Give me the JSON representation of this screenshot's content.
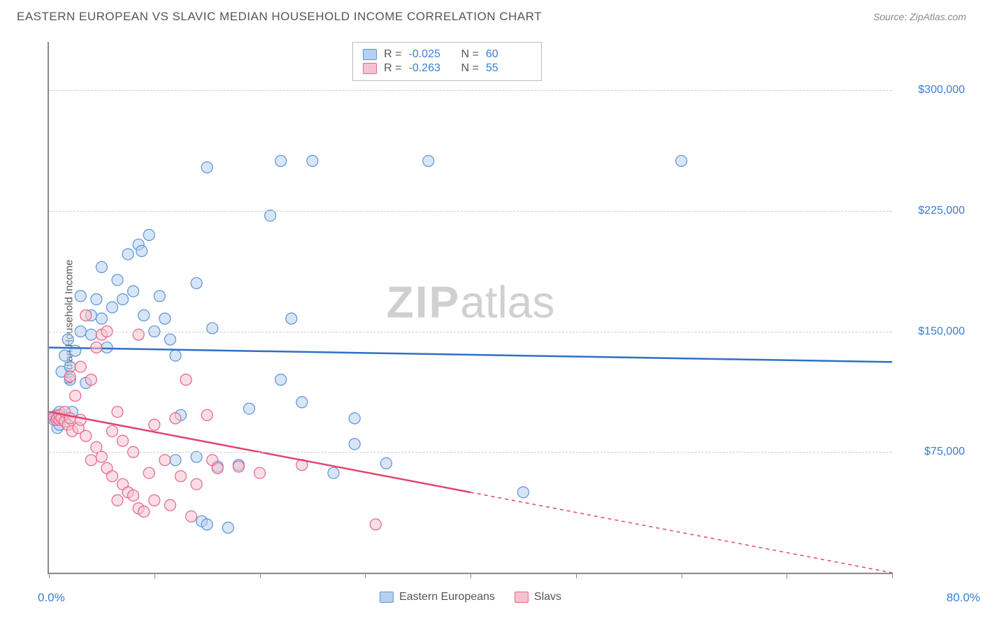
{
  "header": {
    "title": "EASTERN EUROPEAN VS SLAVIC MEDIAN HOUSEHOLD INCOME CORRELATION CHART",
    "source": "Source: ZipAtlas.com"
  },
  "watermark": {
    "zip": "ZIP",
    "atlas": "atlas"
  },
  "chart": {
    "type": "scatter",
    "y_axis_label": "Median Household Income",
    "xlim": [
      0,
      80
    ],
    "ylim": [
      0,
      330000
    ],
    "x_min_label": "0.0%",
    "x_max_label": "80.0%",
    "x_ticks": [
      0,
      10,
      20,
      30,
      40,
      50,
      60,
      70,
      80
    ],
    "y_gridlines": [
      75000,
      150000,
      225000,
      300000
    ],
    "y_tick_labels": [
      "$75,000",
      "$150,000",
      "$225,000",
      "$300,000"
    ],
    "grid_color": "#cccccc",
    "axis_color": "#888888",
    "background_color": "#ffffff",
    "stats": [
      {
        "swatch_fill": "#b6d0f0",
        "swatch_border": "#5a93d6",
        "r_label": "R =",
        "r": "-0.025",
        "n_label": "N =",
        "n": "60"
      },
      {
        "swatch_fill": "#f5c3d0",
        "swatch_border": "#e56387",
        "r_label": "R =",
        "r": "-0.263",
        "n_label": "N =",
        "n": "55"
      }
    ],
    "bottom_legend": [
      {
        "swatch_fill": "#b6d0f0",
        "swatch_border": "#5a93d6",
        "label": "Eastern Europeans"
      },
      {
        "swatch_fill": "#f5c3d0",
        "swatch_border": "#e56387",
        "label": "Slavs"
      }
    ],
    "series": [
      {
        "name": "Eastern Europeans",
        "marker_fill": "#b6d0f0",
        "marker_stroke": "#5a93d6",
        "marker_fill_opacity": 0.55,
        "marker_r": 8,
        "trend": {
          "color": "#2f6fc7",
          "width": 2.5,
          "y_start": 140000,
          "y_end": 131000,
          "dash_from_x": 80
        },
        "points": [
          [
            0.5,
            95000
          ],
          [
            0.7,
            98000
          ],
          [
            0.8,
            90000
          ],
          [
            1,
            92000
          ],
          [
            1,
            100000
          ],
          [
            1.2,
            125000
          ],
          [
            1.5,
            135000
          ],
          [
            1.8,
            145000
          ],
          [
            2,
            120000
          ],
          [
            2,
            128000
          ],
          [
            2.2,
            100000
          ],
          [
            2.5,
            138000
          ],
          [
            3,
            150000
          ],
          [
            3,
            172000
          ],
          [
            3.5,
            118000
          ],
          [
            4,
            148000
          ],
          [
            4,
            160000
          ],
          [
            4.5,
            170000
          ],
          [
            5,
            158000
          ],
          [
            5,
            190000
          ],
          [
            5.5,
            140000
          ],
          [
            6,
            165000
          ],
          [
            6.5,
            182000
          ],
          [
            7,
            170000
          ],
          [
            7.5,
            198000
          ],
          [
            8,
            175000
          ],
          [
            8.5,
            204000
          ],
          [
            8.8,
            200000
          ],
          [
            9,
            160000
          ],
          [
            9.5,
            210000
          ],
          [
            10,
            150000
          ],
          [
            10.5,
            172000
          ],
          [
            11,
            158000
          ],
          [
            11.5,
            145000
          ],
          [
            12,
            135000
          ],
          [
            12,
            70000
          ],
          [
            12.5,
            98000
          ],
          [
            14,
            180000
          ],
          [
            14,
            72000
          ],
          [
            14.5,
            32000
          ],
          [
            15,
            30000
          ],
          [
            15.5,
            152000
          ],
          [
            15,
            252000
          ],
          [
            16,
            66000
          ],
          [
            17,
            28000
          ],
          [
            18,
            67000
          ],
          [
            19,
            102000
          ],
          [
            21,
            222000
          ],
          [
            22,
            256000
          ],
          [
            22,
            120000
          ],
          [
            23,
            158000
          ],
          [
            24,
            106000
          ],
          [
            25,
            256000
          ],
          [
            27,
            62000
          ],
          [
            29,
            80000
          ],
          [
            29,
            96000
          ],
          [
            32,
            68000
          ],
          [
            36,
            256000
          ],
          [
            45,
            50000
          ],
          [
            60,
            256000
          ]
        ]
      },
      {
        "name": "Slavs",
        "marker_fill": "#f5c3d0",
        "marker_stroke": "#e56387",
        "marker_fill_opacity": 0.55,
        "marker_r": 8,
        "trend": {
          "color": "#e0446f",
          "width": 2.5,
          "y_start": 100000,
          "y_end": 0,
          "dash_from_x": 40
        },
        "points": [
          [
            0.5,
            97000
          ],
          [
            0.7,
            95000
          ],
          [
            0.8,
            96000
          ],
          [
            1,
            95000
          ],
          [
            1,
            98000
          ],
          [
            1.2,
            96000
          ],
          [
            1.5,
            94000
          ],
          [
            1.5,
            100000
          ],
          [
            1.8,
            92000
          ],
          [
            2,
            96000
          ],
          [
            2,
            122000
          ],
          [
            2.2,
            88000
          ],
          [
            2.5,
            110000
          ],
          [
            2.8,
            90000
          ],
          [
            3,
            95000
          ],
          [
            3,
            128000
          ],
          [
            3.5,
            85000
          ],
          [
            3.5,
            160000
          ],
          [
            4,
            70000
          ],
          [
            4,
            120000
          ],
          [
            4.5,
            78000
          ],
          [
            4.5,
            140000
          ],
          [
            5,
            72000
          ],
          [
            5,
            148000
          ],
          [
            5.5,
            65000
          ],
          [
            5.5,
            150000
          ],
          [
            6,
            60000
          ],
          [
            6,
            88000
          ],
          [
            6.5,
            45000
          ],
          [
            6.5,
            100000
          ],
          [
            7,
            55000
          ],
          [
            7,
            82000
          ],
          [
            7.5,
            50000
          ],
          [
            8,
            48000
          ],
          [
            8,
            75000
          ],
          [
            8.5,
            40000
          ],
          [
            8.5,
            148000
          ],
          [
            9,
            38000
          ],
          [
            9.5,
            62000
          ],
          [
            10,
            45000
          ],
          [
            10,
            92000
          ],
          [
            11,
            70000
          ],
          [
            11.5,
            42000
          ],
          [
            12,
            96000
          ],
          [
            12.5,
            60000
          ],
          [
            13,
            120000
          ],
          [
            13.5,
            35000
          ],
          [
            14,
            55000
          ],
          [
            15,
            98000
          ],
          [
            15.5,
            70000
          ],
          [
            16,
            65000
          ],
          [
            18,
            66000
          ],
          [
            20,
            62000
          ],
          [
            24,
            67000
          ],
          [
            31,
            30000
          ]
        ]
      }
    ]
  }
}
